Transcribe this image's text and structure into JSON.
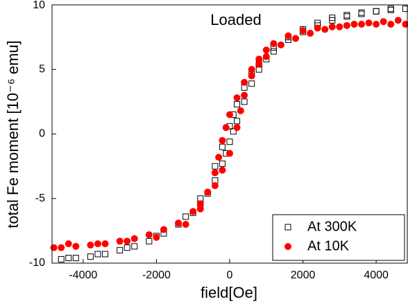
{
  "chart_data": {
    "type": "scatter",
    "annotation": "Loaded",
    "xlabel": "field[Oe]",
    "ylabel": "total Fe moment [10⁻⁶ emu]",
    "xlim": [
      -4850,
      4850
    ],
    "ylim": [
      -10,
      10
    ],
    "xticks": [
      -4000,
      -2000,
      0,
      2000,
      4000
    ],
    "yticks": [
      -10,
      -5,
      0,
      5,
      10
    ],
    "legend": "lower right",
    "series": [
      {
        "name": "At 300K",
        "color": "#000000",
        "marker": "square",
        "x": [
          4800,
          4400,
          4000,
          3600,
          3200,
          2800,
          2400,
          2000,
          1600,
          1200,
          1000,
          800,
          600,
          400,
          200,
          100,
          0,
          -100,
          -200,
          -400,
          -600,
          -800,
          -1000,
          -1400,
          -1800,
          -2200,
          -2600,
          -3000,
          -3400,
          -3800,
          -4200,
          -4600,
          -4400,
          -3600,
          -2800,
          -2000,
          -1200,
          -800,
          -400,
          -200,
          0,
          100,
          200,
          400,
          600,
          800,
          1200,
          1600,
          2000,
          2400,
          2800,
          3200,
          3600,
          4000,
          4400
        ],
        "values": [
          9.7,
          9.6,
          9.5,
          9.3,
          9.1,
          8.8,
          8.4,
          7.9,
          7.3,
          6.4,
          5.8,
          5.0,
          3.9,
          2.5,
          1.0,
          0.2,
          -0.6,
          -1.5,
          -2.3,
          -3.6,
          -4.6,
          -5.4,
          -6.1,
          -7.0,
          -7.7,
          -8.3,
          -8.7,
          -9.0,
          -9.3,
          -9.5,
          -9.6,
          -9.7,
          -9.6,
          -9.3,
          -8.8,
          -7.9,
          -6.4,
          -5.0,
          -2.5,
          -1.0,
          0.6,
          1.5,
          2.3,
          3.6,
          4.6,
          5.4,
          6.7,
          7.5,
          8.1,
          8.6,
          9.0,
          9.2,
          9.4,
          9.5,
          9.7
        ]
      },
      {
        "name": "At 10K",
        "color": "#ff0000",
        "marker": "circle",
        "x": [
          4800,
          4400,
          4000,
          3600,
          3200,
          2800,
          2400,
          2000,
          1600,
          1200,
          1000,
          800,
          600,
          400,
          200,
          0,
          -100,
          -200,
          -300,
          -400,
          -600,
          -800,
          -1000,
          -1400,
          -1800,
          -2200,
          -2600,
          -3000,
          -3400,
          -3800,
          -4200,
          -4600,
          -4800,
          -4400,
          -3600,
          -2800,
          -2000,
          -1200,
          -800,
          -400,
          -200,
          0,
          200,
          300,
          400,
          600,
          800,
          1000,
          1400,
          1800,
          2200,
          2600,
          3000,
          3400,
          3800,
          4200,
          4600
        ],
        "values": [
          8.5,
          8.5,
          8.5,
          8.5,
          8.4,
          8.3,
          8.2,
          8.0,
          7.6,
          7.0,
          6.5,
          5.8,
          5.0,
          4.0,
          2.8,
          1.5,
          0.5,
          -0.5,
          -1.8,
          -3.0,
          -4.5,
          -5.4,
          -6.0,
          -6.9,
          -7.4,
          -7.8,
          -8.1,
          -8.3,
          -8.5,
          -8.6,
          -8.7,
          -8.8,
          -8.8,
          -8.5,
          -8.5,
          -8.3,
          -8.0,
          -7.0,
          -5.8,
          -4.0,
          -2.8,
          -1.5,
          0.5,
          1.8,
          3.0,
          4.5,
          5.4,
          6.0,
          6.9,
          7.4,
          7.8,
          8.1,
          8.3,
          8.5,
          8.6,
          8.7,
          8.8
        ]
      }
    ]
  }
}
